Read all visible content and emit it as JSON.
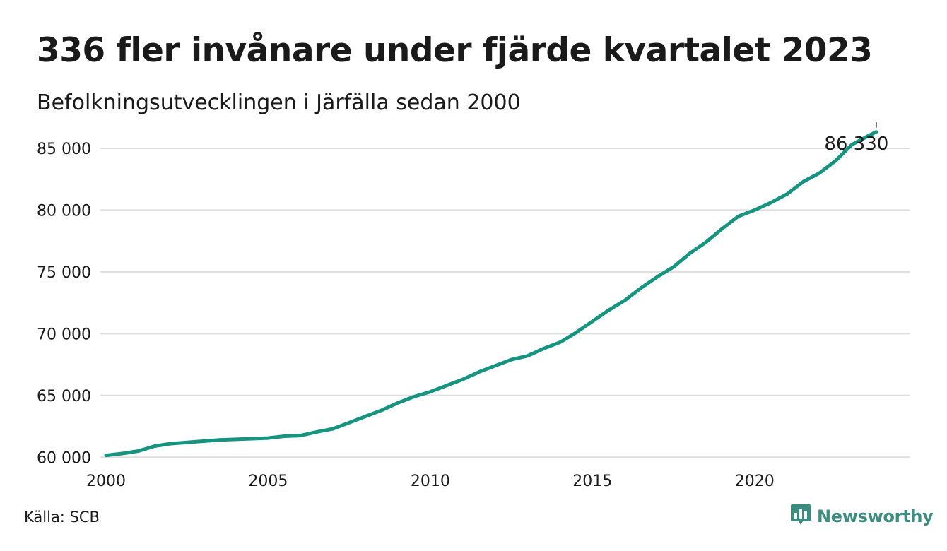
{
  "header": {
    "title": "336 fler invånare under fjärde kvartalet 2023",
    "subtitle": "Befolkningsutvecklingen i Järfälla sedan 2000"
  },
  "footer": {
    "source": "Källa: SCB",
    "brand": "Newsworthy",
    "brand_icon": "bar-chart-speech-bubble-icon"
  },
  "colors": {
    "line": "#16947f",
    "grid": "#dedede",
    "text": "#1a1a1a",
    "brand": "#3d8c80"
  },
  "chart_data": {
    "type": "line",
    "title": "336 fler invånare under fjärde kvartalet 2023",
    "subtitle": "Befolkningsutvecklingen i Järfälla sedan 2000",
    "xlabel": "",
    "ylabel": "",
    "xlim": [
      2000,
      2024.8
    ],
    "ylim": [
      59500,
      87000
    ],
    "x_ticks": [
      2000,
      2005,
      2010,
      2015,
      2020
    ],
    "x_tick_labels": [
      "2000",
      "2005",
      "2010",
      "2015",
      "2020"
    ],
    "y_ticks": [
      60000,
      65000,
      70000,
      75000,
      80000,
      85000
    ],
    "y_tick_labels": [
      "60 000",
      "65 000",
      "70 000",
      "75 000",
      "80 000",
      "85 000"
    ],
    "grid": true,
    "end_label": "86 330",
    "series": [
      {
        "x": [
          2000,
          2000.5,
          2001,
          2001.5,
          2002,
          2002.5,
          2003,
          2003.5,
          2004,
          2004.5,
          2005,
          2005.5,
          2006,
          2006.5,
          2007,
          2007.5,
          2008,
          2008.5,
          2009,
          2009.5,
          2010,
          2010.5,
          2011,
          2011.5,
          2012,
          2012.5,
          2013,
          2013.5,
          2014,
          2014.5,
          2015,
          2015.5,
          2016,
          2016.5,
          2017,
          2017.5,
          2018,
          2018.5,
          2019,
          2019.5,
          2020,
          2020.5,
          2021,
          2021.5,
          2022,
          2022.5,
          2023,
          2023.5,
          2023.75
        ],
        "values": [
          60150,
          60300,
          60500,
          60900,
          61100,
          61200,
          61300,
          61400,
          61450,
          61500,
          61550,
          61700,
          61750,
          62050,
          62300,
          62800,
          63300,
          63800,
          64400,
          64900,
          65300,
          65800,
          66300,
          66900,
          67400,
          67900,
          68200,
          68800,
          69300,
          70100,
          71000,
          71900,
          72700,
          73700,
          74600,
          75400,
          76500,
          77400,
          78500,
          79500,
          80000,
          80600,
          81300,
          82300,
          83000,
          84000,
          85300,
          86000,
          86330
        ]
      }
    ]
  }
}
